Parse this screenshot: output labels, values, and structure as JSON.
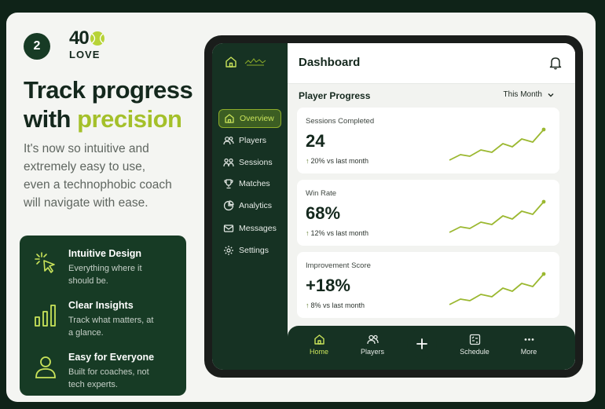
{
  "colors": {
    "brand_dark": "#173b25",
    "accent": "#a4c02a",
    "background": "#f4f5f2"
  },
  "step": {
    "number": "2"
  },
  "logo": {
    "number": "40",
    "word": "LOVE",
    "icon": "tennis-ball-icon"
  },
  "headline": {
    "line1": "Track progress",
    "line2_plain": "with",
    "line2_accent": "precision"
  },
  "subtext": "It's now so intuitive and extremely easy to use, even a technophobic coach will navigate with ease.",
  "features": [
    {
      "title": "Intuitive Design",
      "desc": "Everything where it should be.",
      "icon": "cursor-click-icon"
    },
    {
      "title": "Clear Insights",
      "desc": "Track what matters, at a glance.",
      "icon": "bar-chart-icon"
    },
    {
      "title": "Easy for Everyone",
      "desc": "Built for coaches, not tech experts.",
      "icon": "user-icon"
    }
  ],
  "app": {
    "sidebar": {
      "items": [
        {
          "label": "Overview",
          "icon": "home-icon",
          "active": true
        },
        {
          "label": "Players",
          "icon": "users-icon"
        },
        {
          "label": "Sessions",
          "icon": "user-group-icon"
        },
        {
          "label": "Matches",
          "icon": "trophy-icon"
        },
        {
          "label": "Analytics",
          "icon": "analytics-icon"
        },
        {
          "label": "Messages",
          "icon": "mail-icon"
        },
        {
          "label": "Settings",
          "icon": "gear-icon"
        }
      ]
    },
    "header": {
      "title": "Dashboard",
      "notification_icon": "bell-icon"
    },
    "section": {
      "title": "Player Progress",
      "range_label": "This Month"
    },
    "stats": [
      {
        "label": "Sessions Completed",
        "value": "24",
        "change": "20% vs last month"
      },
      {
        "label": "Win Rate",
        "value": "68%",
        "change": "12% vs last month"
      },
      {
        "label": "Improvement Score",
        "value": "+18%",
        "change": "8% vs last month"
      }
    ],
    "bottom_nav": [
      {
        "label": "Home",
        "icon": "home-icon",
        "active": true
      },
      {
        "label": "Players",
        "icon": "users-icon"
      },
      {
        "label": "",
        "icon": "plus-icon"
      },
      {
        "label": "Schedule",
        "icon": "calendar-icon"
      },
      {
        "label": "More",
        "icon": "more-dots-icon"
      }
    ]
  }
}
